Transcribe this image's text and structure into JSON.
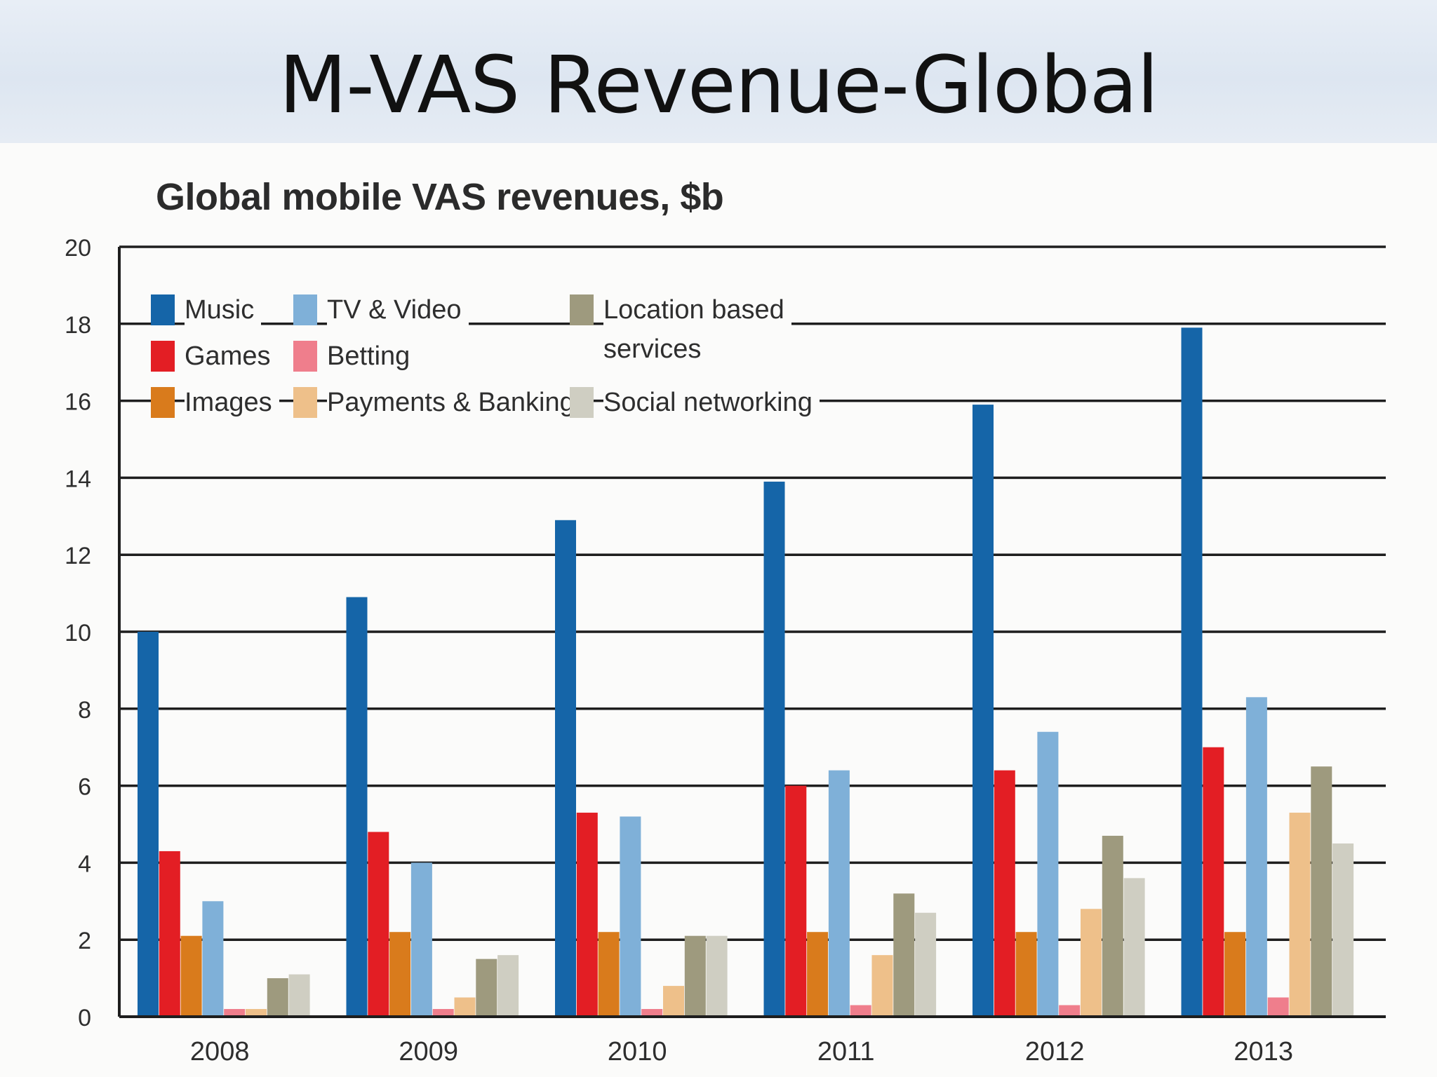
{
  "slide": {
    "title": "M-VAS Revenue-Global"
  },
  "chart_data": {
    "type": "bar",
    "title": "Global mobile VAS revenues, $b",
    "xlabel": "",
    "ylabel": "",
    "ylim": [
      0,
      20
    ],
    "yticks": [
      0,
      2,
      4,
      6,
      8,
      10,
      12,
      14,
      16,
      18,
      20
    ],
    "ytick_labels": [
      "0",
      "2",
      "4",
      "6",
      "8",
      "10",
      "12",
      "14",
      "16",
      "18",
      "20"
    ],
    "grid": true,
    "legend_position": "top-left",
    "categories": [
      "2008",
      "2009",
      "2010",
      "2011",
      "2012",
      "2013"
    ],
    "series": [
      {
        "name": "Music",
        "color": "#1565a8",
        "values": [
          10,
          10.9,
          12.9,
          13.9,
          15.9,
          17.9
        ]
      },
      {
        "name": "Games",
        "color": "#e31e24",
        "values": [
          4.3,
          4.8,
          5.3,
          6.0,
          6.4,
          7.0
        ]
      },
      {
        "name": "Images",
        "color": "#d97b1c",
        "values": [
          2.1,
          2.2,
          2.2,
          2.2,
          2.2,
          2.2
        ]
      },
      {
        "name": "TV & Video",
        "color": "#7fb0d8",
        "values": [
          3.0,
          4.0,
          5.2,
          6.4,
          7.4,
          8.3
        ]
      },
      {
        "name": "Betting",
        "color": "#ef7e8c",
        "values": [
          0.2,
          0.2,
          0.2,
          0.3,
          0.3,
          0.5
        ]
      },
      {
        "name": "Payments & Banking",
        "color": "#eec08a",
        "values": [
          0.2,
          0.5,
          0.8,
          1.6,
          2.8,
          5.3
        ]
      },
      {
        "name": "Location based services",
        "color": "#9e9a7e",
        "values": [
          1.0,
          1.5,
          2.1,
          3.2,
          4.7,
          6.5
        ]
      },
      {
        "name": "Social networking",
        "color": "#cfcec2",
        "values": [
          1.1,
          1.6,
          2.1,
          2.7,
          3.6,
          4.5
        ]
      }
    ],
    "legend": [
      {
        "label": "Music",
        "series": 0
      },
      {
        "label": "Games",
        "series": 1
      },
      {
        "label": "Images",
        "series": 2
      },
      {
        "label": "TV & Video",
        "series": 3
      },
      {
        "label": "Betting",
        "series": 4
      },
      {
        "label": "Payments & Banking",
        "series": 5
      },
      {
        "label": "Location based\nservices",
        "series": 6
      },
      {
        "label": "Social networking",
        "series": 7
      }
    ]
  }
}
